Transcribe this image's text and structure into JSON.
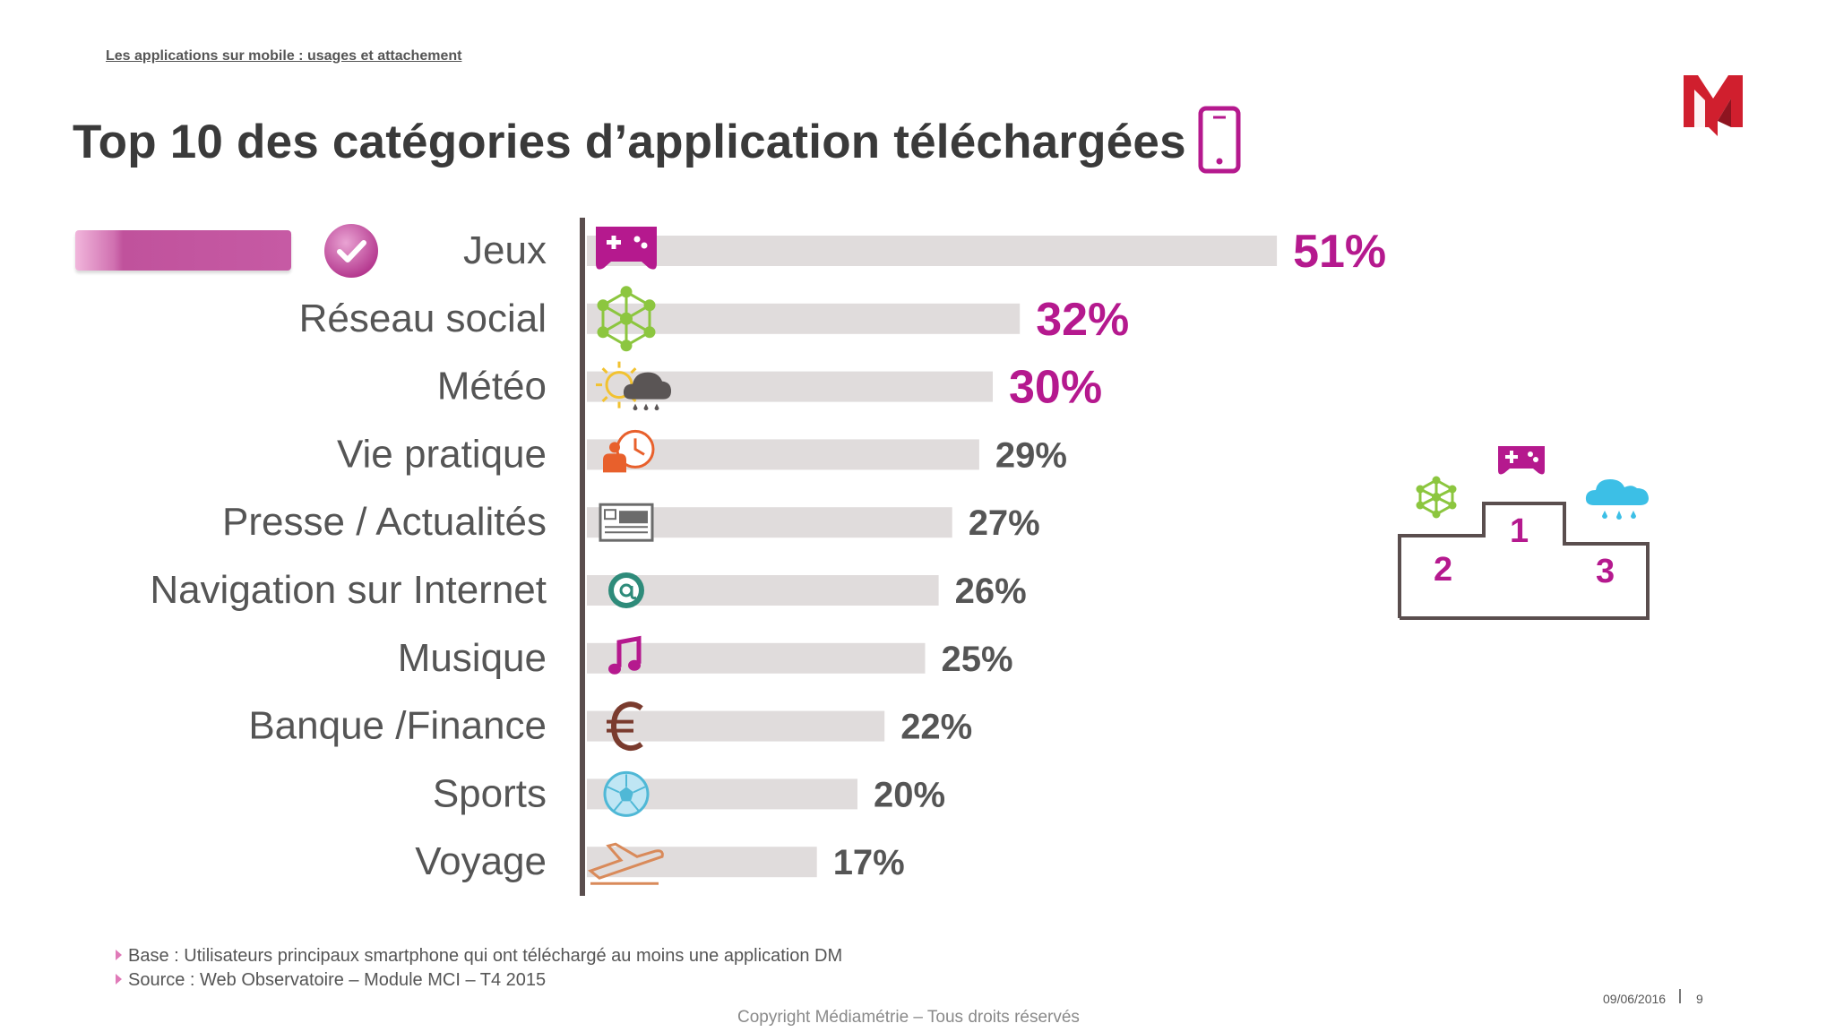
{
  "header": {
    "breadcrumb": "Les applications sur mobile : usages et attachement",
    "title": "Top 10 des catégories d’application téléchargées",
    "logo_text": "M"
  },
  "colors": {
    "accent": "#b5198e",
    "bar_track": "#e0dcdc",
    "axis": "#5a4e4e",
    "label": "#555555"
  },
  "chart_data": {
    "type": "bar",
    "orientation": "horizontal",
    "categories": [
      "Jeux",
      "Réseau social",
      "Météo",
      "Vie pratique",
      "Presse / Actualités",
      "Navigation sur Internet",
      "Musique",
      "Banque /Finance",
      "Sports",
      "Voyage"
    ],
    "values": [
      51,
      32,
      30,
      29,
      27,
      26,
      25,
      22,
      20,
      17
    ],
    "value_labels": [
      "51%",
      "32%",
      "30%",
      "29%",
      "27%",
      "26%",
      "25%",
      "22%",
      "20%",
      "17%"
    ],
    "highlighted": [
      true,
      true,
      true,
      false,
      false,
      false,
      false,
      false,
      false,
      false
    ],
    "icons": [
      "gamepad-icon",
      "network-icon",
      "weather-icon",
      "person-clock-icon",
      "newspaper-icon",
      "at-sign-icon",
      "music-note-icon",
      "euro-icon",
      "football-icon",
      "airplane-icon"
    ],
    "icon_colors": [
      "#b5198e",
      "#8cc63f",
      "#5a5555",
      "#e8602c",
      "#6b6b6b",
      "#2e8b7a",
      "#b5198e",
      "#7a3b2e",
      "#4fb8d6",
      "#d98a5a"
    ]
  },
  "podium": {
    "places": [
      {
        "rank": "1",
        "icon": "gamepad-icon"
      },
      {
        "rank": "2",
        "icon": "network-icon"
      },
      {
        "rank": "3",
        "icon": "rain-cloud-icon"
      }
    ]
  },
  "footnotes": [
    "Base : Utilisateurs principaux smartphone qui ont téléchargé au moins une application DM",
    "Source : Web Observatoire – Module MCI – T4 2015"
  ],
  "footer": {
    "copyright": "Copyright Médiamétrie – Tous droits réservés",
    "date": "09/06/2016",
    "page": "9"
  }
}
